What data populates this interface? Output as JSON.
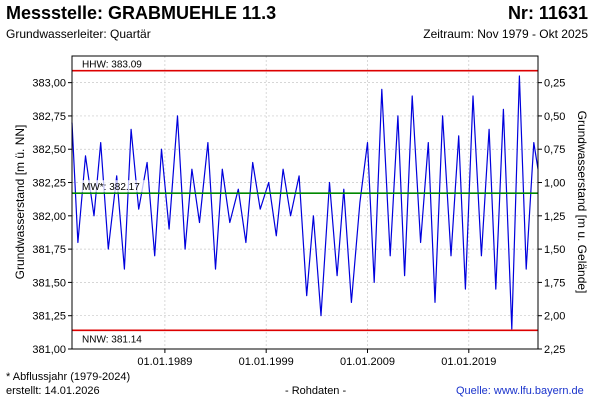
{
  "header": {
    "title": "Messstelle: GRABMUEHLE 11.3",
    "number": "Nr: 11631",
    "aquifer": "Grundwasserleiter: Quartär",
    "period": "Zeitraum: Nov 1979 - Okt 2025"
  },
  "footer": {
    "note": "* Abflussjahr (1979-2024)",
    "created": "erstellt:  14.01.2026",
    "raw": "- Rohdaten -",
    "source": "Quelle: www.lfu.bayern.de"
  },
  "chart_data": {
    "type": "line",
    "ylabel_left": "Grundwasserstand [m ü. NN]",
    "ylabel_right": "Grundwasserstand [m u. Gelände]",
    "ylim_left": [
      381.0,
      383.2
    ],
    "yticks_left": [
      "383,00",
      "382,75",
      "382,50",
      "382,25",
      "382,00",
      "381,75",
      "381,50",
      "381,25",
      "381,00"
    ],
    "yticks_left_values": [
      383.0,
      382.75,
      382.5,
      382.25,
      382.0,
      381.75,
      381.5,
      381.25,
      381.0
    ],
    "yticks_right": [
      "0,25",
      "0,50",
      "0,75",
      "1,00",
      "1,25",
      "1,50",
      "1,75",
      "2,00",
      "2,25"
    ],
    "yticks_right_values": [
      383.0,
      382.75,
      382.5,
      382.25,
      382.0,
      381.75,
      381.5,
      381.25,
      381.0
    ],
    "xlim": [
      "1979-11-01",
      "2025-10-31"
    ],
    "xticks": [
      "01.01.1989",
      "01.01.1999",
      "01.01.2009",
      "01.01.2019"
    ],
    "xticks_values": [
      "1989-01-01",
      "1999-01-01",
      "2009-01-01",
      "2019-01-01"
    ],
    "reference_lines": [
      {
        "label": "HHW: 383.09",
        "value": 383.09,
        "color": "#dd0000"
      },
      {
        "label": "MW*: 382.17",
        "value": 382.17,
        "color": "#008800"
      },
      {
        "label": "NNW: 381.14",
        "value": 381.14,
        "color": "#dd0000"
      }
    ],
    "grid": true,
    "series": [
      {
        "color": "#0000dd",
        "x": [
          "1979-11-01",
          "1980-06-01",
          "1981-03-01",
          "1982-01-01",
          "1982-09-01",
          "1983-06-01",
          "1984-04-01",
          "1985-01-01",
          "1985-09-01",
          "1986-06-01",
          "1987-04-01",
          "1988-01-01",
          "1988-09-01",
          "1989-06-01",
          "1990-04-01",
          "1991-01-01",
          "1991-09-01",
          "1992-06-01",
          "1993-04-01",
          "1994-01-01",
          "1994-09-01",
          "1995-06-01",
          "1996-04-01",
          "1997-01-01",
          "1997-09-01",
          "1998-06-01",
          "1999-04-01",
          "2000-01-01",
          "2000-09-01",
          "2001-06-01",
          "2002-04-01",
          "2003-01-01",
          "2003-09-01",
          "2004-06-01",
          "2005-04-01",
          "2006-01-01",
          "2006-09-01",
          "2007-06-01",
          "2008-04-01",
          "2009-01-01",
          "2009-09-01",
          "2010-06-01",
          "2011-04-01",
          "2012-01-01",
          "2012-09-01",
          "2013-06-01",
          "2014-04-01",
          "2015-01-01",
          "2015-09-01",
          "2016-06-01",
          "2017-04-01",
          "2018-01-01",
          "2018-09-01",
          "2019-06-01",
          "2020-04-01",
          "2021-01-01",
          "2021-09-01",
          "2022-06-01",
          "2023-04-01",
          "2024-01-01",
          "2024-09-01",
          "2025-06-01",
          "2025-10-31"
        ],
        "y": [
          382.7,
          381.8,
          382.45,
          382.0,
          382.55,
          381.75,
          382.3,
          381.6,
          382.65,
          382.05,
          382.4,
          381.7,
          382.5,
          381.9,
          382.75,
          381.75,
          382.35,
          381.95,
          382.55,
          381.6,
          382.35,
          381.95,
          382.2,
          381.8,
          382.4,
          382.05,
          382.25,
          381.85,
          382.35,
          382.0,
          382.3,
          381.4,
          382.0,
          381.25,
          382.25,
          381.55,
          382.2,
          381.35,
          382.1,
          382.55,
          381.5,
          382.95,
          381.7,
          382.75,
          381.55,
          382.9,
          381.8,
          382.55,
          381.35,
          382.75,
          381.7,
          382.6,
          381.45,
          382.9,
          381.7,
          382.65,
          381.45,
          382.8,
          381.15,
          383.05,
          381.6,
          382.55,
          382.35
        ]
      }
    ]
  }
}
